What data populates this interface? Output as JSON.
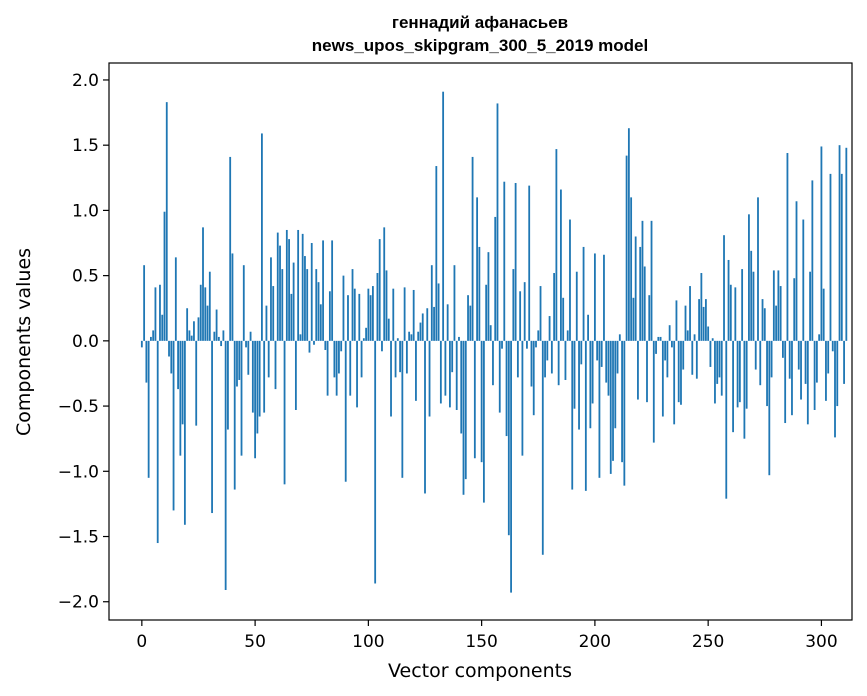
{
  "chart_data": {
    "type": "bar",
    "title_line1": "геннадий афанасьев",
    "title_line2": "news_upos_skipgram_300_5_2019 model",
    "xlabel": "Vector components",
    "ylabel": "Components values",
    "xlim": [
      -14.5,
      313.5
    ],
    "ylim": [
      -2.14,
      2.13
    ],
    "xticks": [
      0,
      50,
      100,
      150,
      200,
      250,
      300
    ],
    "xtick_labels": [
      "0",
      "50",
      "100",
      "150",
      "200",
      "250",
      "300"
    ],
    "yticks": [
      2.0,
      1.5,
      1.0,
      0.5,
      0.0,
      -0.5,
      -1.0,
      -1.5,
      -2.0
    ],
    "ytick_labels": [
      "2.0",
      "1.5",
      "1.0",
      "0.5",
      "0.0",
      "−0.5",
      "−1.0",
      "−1.5",
      "−2.0"
    ],
    "bar_color": "#1f77b4",
    "values": [
      -0.05,
      0.58,
      -0.32,
      -1.05,
      0.03,
      0.08,
      0.41,
      -1.55,
      0.43,
      0.2,
      0.99,
      1.83,
      -0.12,
      -0.25,
      -1.3,
      0.64,
      -0.37,
      -0.88,
      -0.64,
      -1.41,
      0.25,
      0.08,
      0.04,
      0.15,
      -0.65,
      0.18,
      0.43,
      0.87,
      0.41,
      0.27,
      0.53,
      -1.32,
      0.07,
      0.24,
      0.03,
      -0.04,
      0.08,
      -1.91,
      -0.68,
      1.41,
      0.67,
      -1.14,
      -0.35,
      -0.3,
      -0.88,
      0.58,
      -0.05,
      -0.26,
      0.07,
      -0.55,
      -0.9,
      -0.71,
      -0.58,
      1.59,
      -0.55,
      0.27,
      -0.28,
      0.64,
      0.42,
      -0.37,
      0.83,
      0.73,
      0.55,
      -1.1,
      0.85,
      0.78,
      0.36,
      0.6,
      -0.53,
      0.85,
      0.05,
      0.82,
      0.65,
      0.55,
      -0.09,
      0.75,
      -0.03,
      0.55,
      0.45,
      0.28,
      0.77,
      -0.07,
      -0.42,
      0.38,
      0.77,
      -0.28,
      -0.42,
      -0.25,
      -0.08,
      0.5,
      -1.08,
      0.35,
      -0.42,
      0.55,
      0.4,
      -0.51,
      0.36,
      -0.28,
      0.02,
      0.1,
      0.4,
      0.35,
      0.42,
      -1.86,
      0.52,
      0.78,
      -0.08,
      0.87,
      0.54,
      0.17,
      -0.58,
      0.4,
      -0.28,
      0.02,
      -0.24,
      -1.05,
      0.41,
      -0.25,
      0.07,
      0.05,
      0.39,
      -0.46,
      0.07,
      0.14,
      0.21,
      -1.17,
      0.25,
      -0.58,
      0.58,
      0.26,
      1.34,
      0.44,
      -0.48,
      1.91,
      -0.42,
      0.28,
      -0.51,
      -0.24,
      0.58,
      -0.53,
      0.03,
      -0.71,
      -1.18,
      -1.06,
      0.35,
      0.27,
      1.41,
      -0.9,
      1.1,
      0.72,
      -0.93,
      -1.24,
      0.43,
      0.68,
      0.12,
      -0.34,
      0.95,
      1.82,
      -0.55,
      -0.06,
      1.22,
      -0.73,
      -1.49,
      -1.93,
      0.55,
      1.21,
      -0.28,
      0.38,
      -0.88,
      0.45,
      -0.06,
      1.19,
      -0.35,
      -0.57,
      -0.05,
      0.08,
      0.42,
      -1.64,
      -0.28,
      -0.15,
      0.19,
      -0.25,
      0.52,
      1.47,
      -0.34,
      1.16,
      0.33,
      -0.3,
      0.08,
      0.93,
      -1.14,
      -0.52,
      0.53,
      -0.68,
      -0.18,
      0.72,
      -1.15,
      0.2,
      -0.67,
      -0.48,
      0.67,
      -0.15,
      -1.05,
      -0.2,
      0.66,
      -0.32,
      -0.42,
      -1.02,
      -0.92,
      -0.67,
      -0.25,
      0.05,
      -0.93,
      -1.11,
      1.42,
      1.63,
      1.1,
      0.33,
      0.8,
      -0.45,
      0.72,
      0.92,
      0.57,
      -0.47,
      0.35,
      0.92,
      -0.78,
      -0.1,
      0.03,
      0.03,
      -0.58,
      -0.15,
      -0.28,
      0.12,
      -0.05,
      -0.64,
      0.31,
      -0.47,
      -0.49,
      -0.22,
      0.27,
      0.08,
      0.42,
      -0.26,
      0.05,
      -0.29,
      0.32,
      0.52,
      0.26,
      0.32,
      0.11,
      -0.2,
      0.02,
      -0.48,
      -0.33,
      -0.28,
      -0.42,
      0.81,
      -1.21,
      0.62,
      0.43,
      -0.7,
      0.41,
      -0.51,
      -0.47,
      0.55,
      -0.75,
      -0.52,
      0.97,
      0.69,
      0.53,
      -0.22,
      1.1,
      -0.34,
      0.32,
      0.25,
      -0.5,
      -1.03,
      -0.28,
      0.54,
      0.27,
      0.54,
      0.42,
      -0.13,
      -0.63,
      1.44,
      -0.29,
      -0.57,
      0.48,
      1.07,
      -0.22,
      -0.45,
      0.93,
      -0.33,
      -0.64,
      0.53,
      1.23,
      -0.53,
      -0.32,
      0.05,
      1.49,
      0.4,
      -0.46,
      -0.25,
      1.28,
      -0.08,
      -0.74,
      -0.5,
      1.5,
      1.28,
      -0.33,
      1.48
    ]
  }
}
